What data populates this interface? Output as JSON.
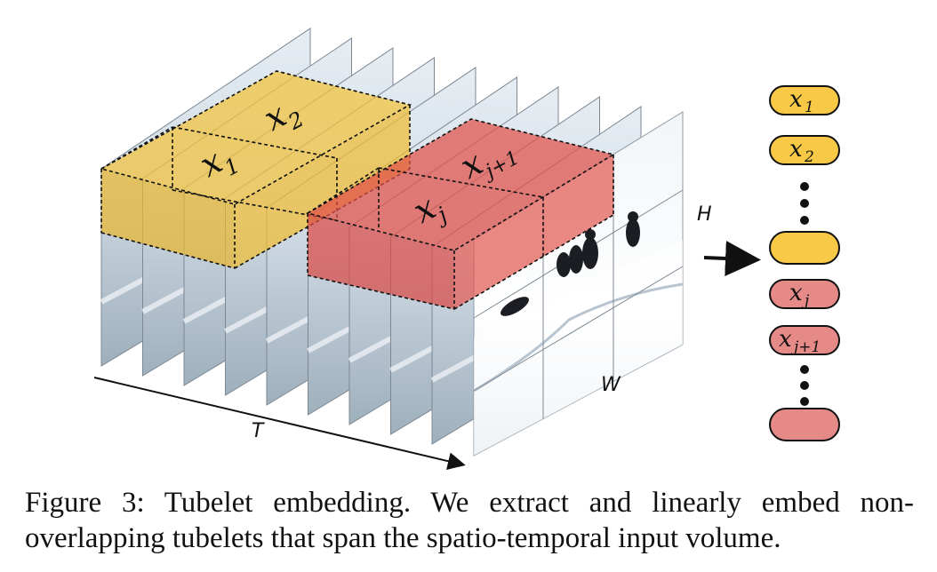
{
  "figure": {
    "axis_T": "T",
    "axis_H": "H",
    "axis_W": "W",
    "cube_labels": {
      "x1": "x",
      "x1_sub": "1",
      "x2": "x",
      "x2_sub": "2",
      "xj": "x",
      "xj_sub": "j",
      "xj1": "x",
      "xj1_sub": "j+1"
    },
    "tokens": [
      {
        "label": "x",
        "sub": "1",
        "color": "#f7c946"
      },
      {
        "label": "x",
        "sub": "2",
        "color": "#f7c946"
      },
      {
        "label": "",
        "sub": "",
        "color": "#f7c946"
      },
      {
        "label": "x",
        "sub": "j",
        "color": "#e58a86"
      },
      {
        "label": "x",
        "sub": "j+1",
        "color": "#e58a86"
      },
      {
        "label": "",
        "sub": "",
        "color": "#e58a86"
      }
    ],
    "colors": {
      "yellow": "#f2c23a",
      "red": "#e0504a",
      "frame": "#c8d3de"
    }
  },
  "caption": "Figure 3: Tubelet embedding. We extract and linearly embed non-overlapping tubelets that span the spatio-temporal input volume."
}
